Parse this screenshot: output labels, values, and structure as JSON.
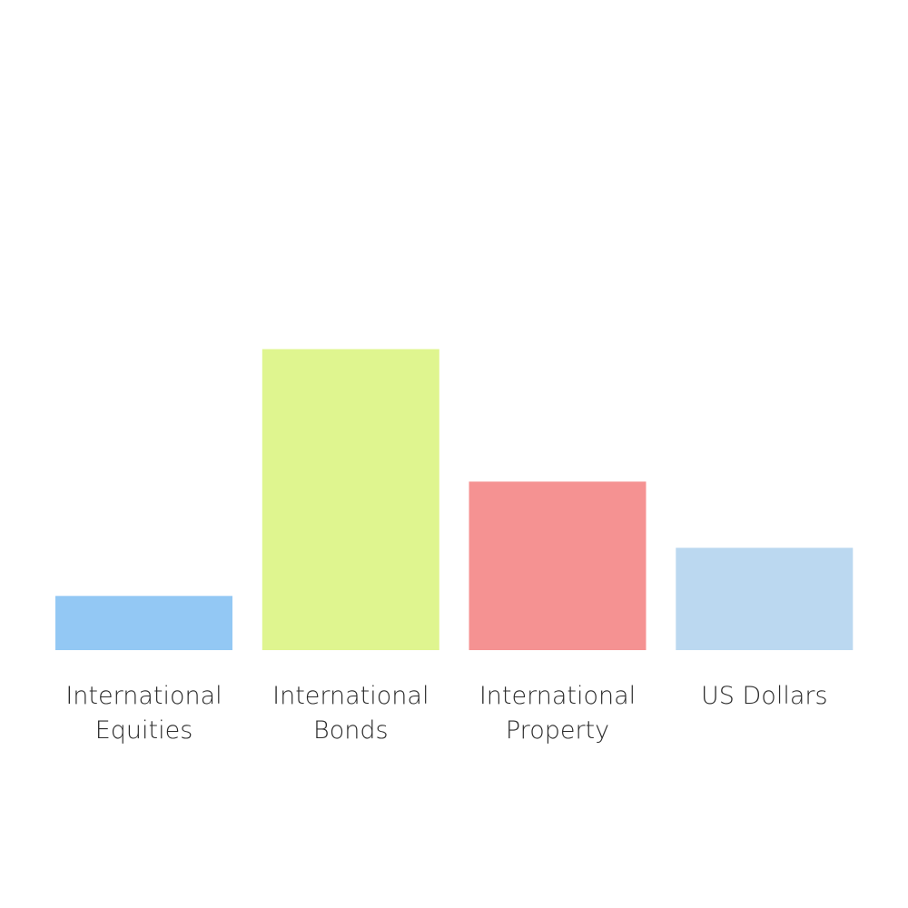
{
  "chart_data": {
    "type": "bar",
    "categories": [
      [
        "International",
        "Equities"
      ],
      [
        "International",
        "Bonds"
      ],
      [
        "International",
        "Property"
      ],
      [
        "US Dollars"
      ]
    ],
    "values": [
      9,
      50,
      28,
      17
    ],
    "colors": [
      "#93c8f4",
      "#dff58f",
      "#f59292",
      "#bbd8f0"
    ],
    "title": "",
    "xlabel": "",
    "ylabel": "",
    "ylim": [
      0,
      100
    ],
    "grid": false,
    "legend": "none"
  }
}
